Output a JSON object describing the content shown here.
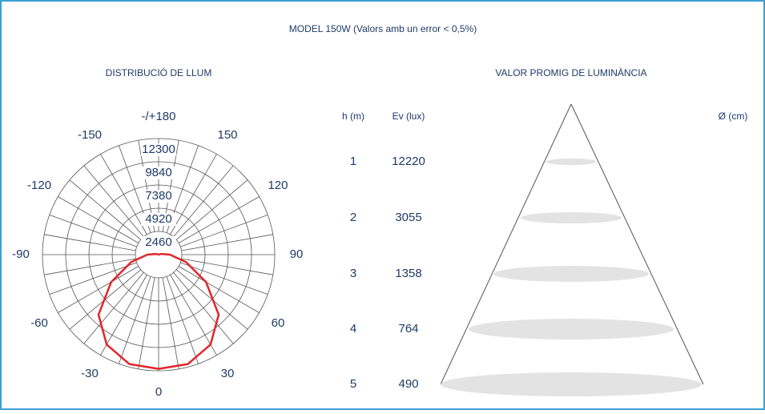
{
  "title": "MODEL 150W (Valors amb un error < 0,5%)",
  "chart_data": {
    "type": "polar",
    "title": "DISTRIBUCIÓ DE LLUM",
    "angle_ticks": [
      {
        "value": 180,
        "label": "-/+180"
      },
      -150,
      150,
      -120,
      120,
      -90,
      90,
      -60,
      60,
      -30,
      30,
      0
    ],
    "rlim": [
      0,
      12300
    ],
    "rticks": [
      2460,
      4920,
      7380,
      9840,
      12300
    ],
    "x": [
      -180,
      -165,
      -150,
      -135,
      -120,
      -105,
      -90,
      -75,
      -60,
      -45,
      -30,
      -15,
      0,
      15,
      30,
      45,
      60,
      75,
      90,
      105,
      120,
      135,
      150,
      165,
      180
    ],
    "values": [
      0,
      0,
      0,
      0,
      0,
      300,
      1200,
      3000,
      5800,
      9000,
      11000,
      12000,
      12100,
      12000,
      11000,
      9000,
      5800,
      3000,
      1200,
      300,
      0,
      0,
      0,
      0,
      0
    ],
    "color": "#e0262b"
  },
  "table": {
    "headers": [
      "h (m)",
      "Ev (lux)"
    ],
    "rows": [
      [
        1,
        12220
      ],
      [
        2,
        3055
      ],
      [
        3,
        1358
      ],
      [
        4,
        764
      ],
      [
        5,
        490
      ]
    ]
  },
  "cone": {
    "title": "VALOR PROMIG DE LUMINÀNCIA",
    "diameter_label": "Ø (cm)"
  }
}
